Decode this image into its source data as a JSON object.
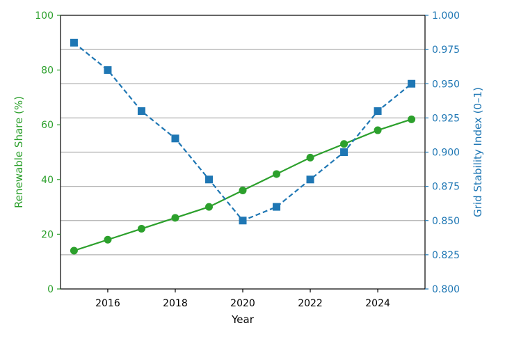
{
  "chart_data": {
    "type": "line",
    "xlabel": "Year",
    "x": [
      2015,
      2016,
      2017,
      2018,
      2019,
      2020,
      2021,
      2022,
      2023,
      2024,
      2025
    ],
    "xticks": [
      2016,
      2018,
      2020,
      2022,
      2024
    ],
    "xlim": [
      2014.6,
      2025.4
    ],
    "grid": "horizontal lines at right-axis ticks",
    "y_left": {
      "label": "Renewable Share (%)",
      "color": "#2ca02c",
      "ylim": [
        0,
        100
      ],
      "ticks": [
        0,
        20,
        40,
        60,
        80,
        100
      ]
    },
    "y_right": {
      "label": "Grid Stability Index (0–1)",
      "color": "#1f77b4",
      "ylim": [
        0.8,
        1.0
      ],
      "ticks": [
        "0.800",
        "0.825",
        "0.850",
        "0.875",
        "0.900",
        "0.925",
        "0.950",
        "0.975",
        "1.000"
      ]
    },
    "series": [
      {
        "axis": "left",
        "color": "#2ca02c",
        "style": "solid",
        "marker": "circle",
        "values": [
          14,
          18,
          22,
          26,
          30,
          36,
          42,
          48,
          53,
          58,
          62
        ]
      },
      {
        "axis": "right",
        "color": "#1f77b4",
        "style": "dashed",
        "marker": "square",
        "values": [
          0.98,
          0.96,
          0.93,
          0.91,
          0.88,
          0.85,
          0.86,
          0.88,
          0.9,
          0.93,
          0.95
        ]
      }
    ]
  }
}
